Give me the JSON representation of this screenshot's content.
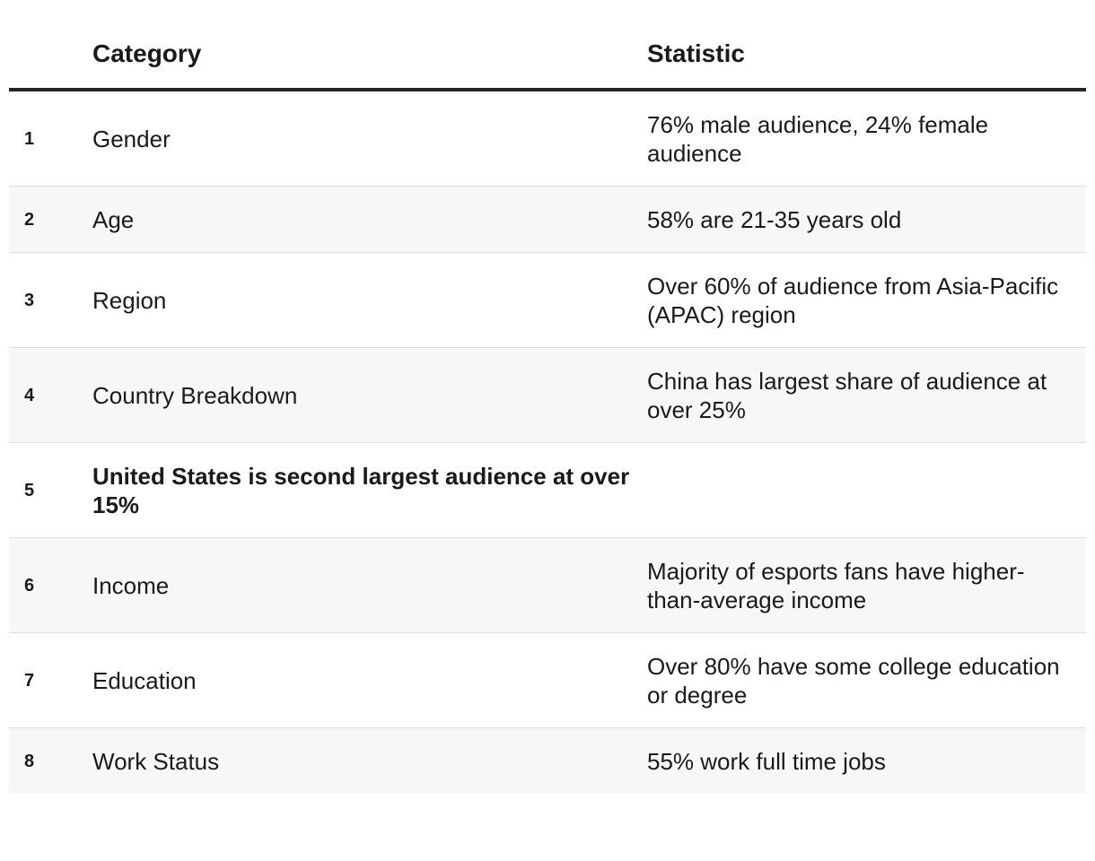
{
  "table": {
    "headers": {
      "number": "",
      "category": "Category",
      "statistic": "Statistic"
    },
    "rows": [
      {
        "number": "1",
        "category": "Gender",
        "statistic": "76% male audience, 24% female audience"
      },
      {
        "number": "2",
        "category": "Age",
        "statistic": "58% are 21-35 years old"
      },
      {
        "number": "3",
        "category": "Region",
        "statistic": "Over 60% of audience from Asia-Pacific (APAC) region"
      },
      {
        "number": "4",
        "category": "Country Breakdown",
        "statistic": "China has largest share of audience at over 25%"
      },
      {
        "number": "5",
        "category": "United States is second largest audience at over 15%",
        "statistic": ""
      },
      {
        "number": "6",
        "category": "Income",
        "statistic": "Majority of esports fans have higher-than-average income"
      },
      {
        "number": "7",
        "category": "Education",
        "statistic": "Over 80% have some college education or degree"
      },
      {
        "number": "8",
        "category": "Work Status",
        "statistic": "55% work full time jobs"
      }
    ]
  }
}
